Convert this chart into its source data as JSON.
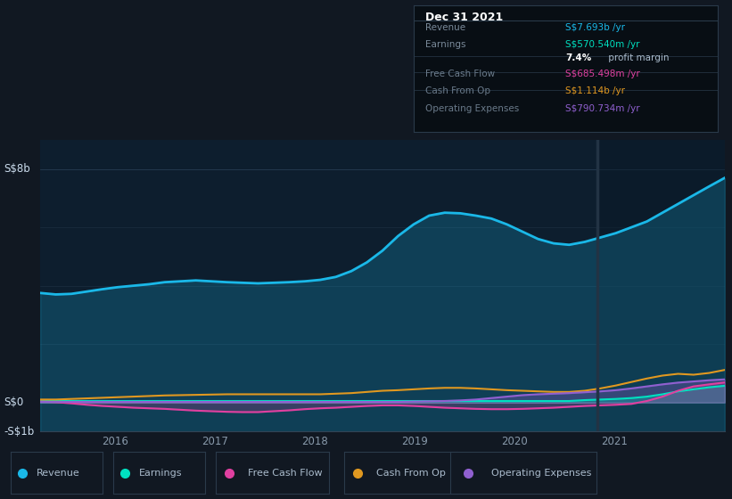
{
  "bg_color": "#111822",
  "chart_bg": "#0d1e2e",
  "ylabel_top": "S$8b",
  "ylabel_zero": "S$0",
  "ylabel_bottom": "-S$1b",
  "x_labels": [
    "2016",
    "2017",
    "2018",
    "2019",
    "2020",
    "2021"
  ],
  "y_min": -1.0,
  "y_max": 9.0,
  "series": {
    "Revenue": {
      "color": "#1ab8e8",
      "linewidth": 2.0
    },
    "Earnings": {
      "color": "#00e0c0",
      "linewidth": 1.5
    },
    "Free Cash Flow": {
      "color": "#e040a0",
      "linewidth": 1.5
    },
    "Cash From Op": {
      "color": "#e09820",
      "linewidth": 1.5
    },
    "Operating Expenses": {
      "color": "#9060d0",
      "linewidth": 1.5
    }
  },
  "revenue_data": [
    3.75,
    3.7,
    3.72,
    3.8,
    3.88,
    3.95,
    4.0,
    4.05,
    4.12,
    4.15,
    4.18,
    4.15,
    4.12,
    4.1,
    4.08,
    4.1,
    4.12,
    4.15,
    4.2,
    4.3,
    4.5,
    4.8,
    5.2,
    5.7,
    6.1,
    6.4,
    6.5,
    6.48,
    6.4,
    6.3,
    6.1,
    5.85,
    5.6,
    5.45,
    5.4,
    5.5,
    5.65,
    5.8,
    6.0,
    6.2,
    6.5,
    6.8,
    7.1,
    7.4,
    7.693
  ],
  "earnings_data": [
    0.06,
    0.05,
    0.05,
    0.05,
    0.05,
    0.05,
    0.05,
    0.05,
    0.05,
    0.05,
    0.05,
    0.05,
    0.05,
    0.05,
    0.05,
    0.05,
    0.05,
    0.05,
    0.05,
    0.05,
    0.05,
    0.05,
    0.05,
    0.05,
    0.05,
    0.05,
    0.05,
    0.05,
    0.05,
    0.05,
    0.05,
    0.05,
    0.05,
    0.05,
    0.05,
    0.08,
    0.1,
    0.12,
    0.15,
    0.2,
    0.28,
    0.38,
    0.45,
    0.52,
    0.5708
  ],
  "fcf_data": [
    0.03,
    0.01,
    -0.03,
    -0.08,
    -0.12,
    -0.15,
    -0.18,
    -0.2,
    -0.22,
    -0.25,
    -0.28,
    -0.3,
    -0.32,
    -0.33,
    -0.33,
    -0.3,
    -0.27,
    -0.23,
    -0.2,
    -0.18,
    -0.15,
    -0.12,
    -0.1,
    -0.1,
    -0.12,
    -0.15,
    -0.18,
    -0.2,
    -0.22,
    -0.23,
    -0.23,
    -0.22,
    -0.2,
    -0.18,
    -0.15,
    -0.12,
    -0.1,
    -0.08,
    -0.05,
    0.05,
    0.2,
    0.4,
    0.55,
    0.62,
    0.685
  ],
  "cashfromop_data": [
    0.1,
    0.1,
    0.12,
    0.14,
    0.16,
    0.18,
    0.2,
    0.22,
    0.24,
    0.25,
    0.26,
    0.27,
    0.28,
    0.28,
    0.28,
    0.28,
    0.28,
    0.28,
    0.28,
    0.3,
    0.32,
    0.36,
    0.4,
    0.42,
    0.45,
    0.48,
    0.5,
    0.5,
    0.48,
    0.45,
    0.42,
    0.4,
    0.38,
    0.36,
    0.36,
    0.4,
    0.48,
    0.58,
    0.7,
    0.82,
    0.92,
    0.98,
    0.95,
    1.01,
    1.114
  ],
  "opex_data": [
    0.02,
    0.02,
    0.02,
    0.02,
    0.02,
    0.02,
    0.02,
    0.02,
    0.02,
    0.02,
    0.02,
    0.02,
    0.02,
    0.02,
    0.02,
    0.02,
    0.02,
    0.02,
    0.02,
    0.02,
    0.02,
    0.02,
    0.02,
    0.02,
    0.03,
    0.04,
    0.05,
    0.07,
    0.1,
    0.15,
    0.2,
    0.25,
    0.28,
    0.3,
    0.32,
    0.35,
    0.38,
    0.42,
    0.48,
    0.55,
    0.62,
    0.68,
    0.72,
    0.76,
    0.7907
  ],
  "info_box": {
    "title": "Dec 31 2021",
    "rows": [
      {
        "label": "Revenue",
        "value": "S$7.693b /yr",
        "value_color": "#1ab8e8"
      },
      {
        "label": "Earnings",
        "value": "S$570.540m /yr",
        "value_color": "#00e0c0"
      },
      {
        "label": "",
        "value": "7.4% profit margin",
        "value_color": "#ffffff",
        "bold_part": "7.4%"
      },
      {
        "label": "Free Cash Flow",
        "value": "S$685.498m /yr",
        "value_color": "#e040a0"
      },
      {
        "label": "Cash From Op",
        "value": "S$1.114b /yr",
        "value_color": "#e09820"
      },
      {
        "label": "Operating Expenses",
        "value": "S$790.734m /yr",
        "value_color": "#9060d0"
      }
    ]
  },
  "legend_items": [
    {
      "label": "Revenue",
      "color": "#1ab8e8"
    },
    {
      "label": "Earnings",
      "color": "#00e0c0"
    },
    {
      "label": "Free Cash Flow",
      "color": "#e040a0"
    },
    {
      "label": "Cash From Op",
      "color": "#e09820"
    },
    {
      "label": "Operating Expenses",
      "color": "#9060d0"
    }
  ]
}
